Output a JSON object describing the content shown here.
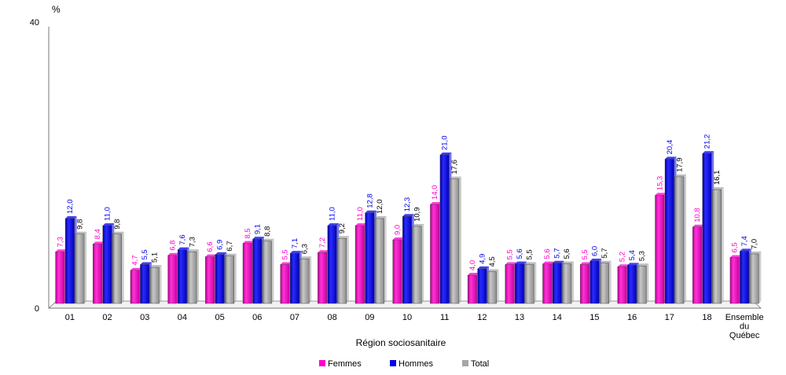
{
  "chart_data": {
    "type": "bar",
    "title": "",
    "ylabel": "%",
    "xlabel": "Région sociosanitaire",
    "ylim": [
      0,
      40
    ],
    "y_ticks": [
      "0",
      "40"
    ],
    "grid": false,
    "legend_position": "bottom",
    "categories": [
      "01",
      "02",
      "03",
      "04",
      "05",
      "06",
      "07",
      "08",
      "09",
      "10",
      "11",
      "12",
      "13",
      "14",
      "15",
      "16",
      "17",
      "18",
      "Ensemble du Québec"
    ],
    "series": [
      {
        "name": "Femmes",
        "color": "#ff00cc",
        "values": [
          7.3,
          8.4,
          4.7,
          6.8,
          6.6,
          8.5,
          5.5,
          7.2,
          11.0,
          9.0,
          14.0,
          4.0,
          5.5,
          5.6,
          5.5,
          5.2,
          15.3,
          10.8,
          6.5
        ],
        "labels": [
          "7,3",
          "8,4",
          "4,7",
          "6,8",
          "6,6",
          "8,5",
          "5,5",
          "7,2",
          "11,0",
          "9,0",
          "14,0",
          "4,0",
          "5,5",
          "5,6",
          "5,5",
          "5,2",
          "15,3",
          "10,8",
          "6,5"
        ]
      },
      {
        "name": "Hommes",
        "color": "#0000e6",
        "values": [
          12.0,
          11.0,
          5.5,
          7.6,
          6.9,
          9.1,
          7.1,
          11.0,
          12.8,
          12.3,
          21.0,
          4.9,
          5.6,
          5.7,
          6.0,
          5.4,
          20.4,
          21.2,
          7.4
        ],
        "labels": [
          "12,0",
          "11,0",
          "5,5",
          "7,6",
          "6,9",
          "9,1",
          "7,1",
          "11,0",
          "12,8",
          "12,3",
          "21,0",
          "4,9",
          "5,6",
          "5,7",
          "6,0",
          "5,4",
          "20,4",
          "21,2",
          "7,4"
        ]
      },
      {
        "name": "Total",
        "color": "#a6a6a6",
        "values": [
          9.8,
          9.8,
          5.1,
          7.3,
          6.7,
          8.8,
          6.3,
          9.2,
          12.0,
          10.9,
          17.6,
          4.5,
          5.5,
          5.6,
          5.7,
          5.3,
          17.9,
          16.1,
          7.0
        ],
        "labels": [
          "9,8",
          "9,8",
          "5,1",
          "7,3",
          "6,7",
          "8,8",
          "6,3",
          "9,2",
          "12,0",
          "10,9",
          "17,6",
          "4,5",
          "5,5",
          "5,6",
          "5,7",
          "5,3",
          "17,9",
          "16,1",
          "7,0"
        ]
      }
    ]
  }
}
